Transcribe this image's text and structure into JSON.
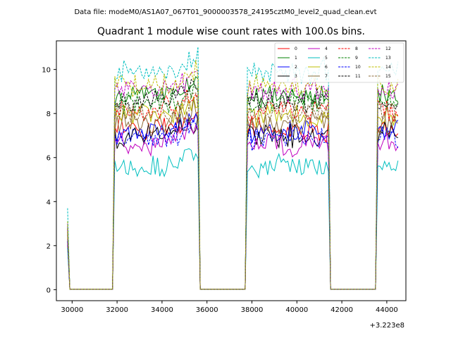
{
  "header": {
    "data_file": "Data file: modeM0/AS1A07_067T01_9000003578_24195cztM0_level2_quad_clean.evt"
  },
  "chart_data": {
    "type": "line",
    "title": "Quadrant 1 module wise count rates with 100.0s bins.",
    "xlabel": "",
    "ylabel": "",
    "x_offset_label": "+3.223e8",
    "xlim": [
      29300,
      44850
    ],
    "ylim": [
      -0.5,
      11.3
    ],
    "x_ticks": [
      30000,
      32000,
      34000,
      36000,
      38000,
      40000,
      42000,
      44000
    ],
    "x_tick_labels": [
      "30000",
      "32000",
      "34000",
      "36000",
      "38000",
      "40000",
      "42000",
      "44000"
    ],
    "y_ticks": [
      0,
      2,
      4,
      6,
      8,
      10
    ],
    "y_tick_labels": [
      "0",
      "2",
      "4",
      "6",
      "8",
      "10"
    ],
    "legend_position": "top-right",
    "grid": false,
    "on_intervals": [
      [
        31900,
        35600
      ],
      [
        37800,
        41400
      ],
      [
        43600,
        44500
      ]
    ],
    "series": [
      {
        "name": "0",
        "color": "#ff0000",
        "dash": "solid",
        "level": 7.3,
        "start": 2.0
      },
      {
        "name": "1",
        "color": "#008000",
        "dash": "solid",
        "level": 8.8,
        "start": 2.9
      },
      {
        "name": "2",
        "color": "#0000ff",
        "dash": "solid",
        "level": 7.2,
        "start": 2.3
      },
      {
        "name": "3",
        "color": "#000000",
        "dash": "solid",
        "level": 7.0,
        "start": 2.2
      },
      {
        "name": "4",
        "color": "#c000c0",
        "dash": "solid",
        "level": 6.6,
        "start": 2.1
      },
      {
        "name": "5",
        "color": "#00bfbf",
        "dash": "solid",
        "level": 5.6,
        "start": 1.9
      },
      {
        "name": "6",
        "color": "#bfbf00",
        "dash": "solid",
        "level": 7.9,
        "start": 2.6
      },
      {
        "name": "7",
        "color": "#8c6d3a",
        "dash": "solid",
        "level": 7.6,
        "start": 2.5
      },
      {
        "name": "8",
        "color": "#ff0000",
        "dash": "dashed",
        "level": 8.2,
        "start": 2.7
      },
      {
        "name": "9",
        "color": "#008000",
        "dash": "dashed",
        "level": 8.5,
        "start": 2.8
      },
      {
        "name": "10",
        "color": "#0000ff",
        "dash": "dashed",
        "level": 6.9,
        "start": 2.2
      },
      {
        "name": "11",
        "color": "#000000",
        "dash": "dashed",
        "level": 8.6,
        "start": 2.8
      },
      {
        "name": "12",
        "color": "#c000c0",
        "dash": "dashed",
        "level": 9.1,
        "start": 3.0
      },
      {
        "name": "13",
        "color": "#00bfbf",
        "dash": "dashed",
        "level": 9.9,
        "start": 3.7
      },
      {
        "name": "14",
        "color": "#bfbf00",
        "dash": "dashed",
        "level": 9.3,
        "start": 3.1
      },
      {
        "name": "15",
        "color": "#8c6d3a",
        "dash": "dashed",
        "level": 8.0,
        "start": 2.6
      }
    ]
  }
}
